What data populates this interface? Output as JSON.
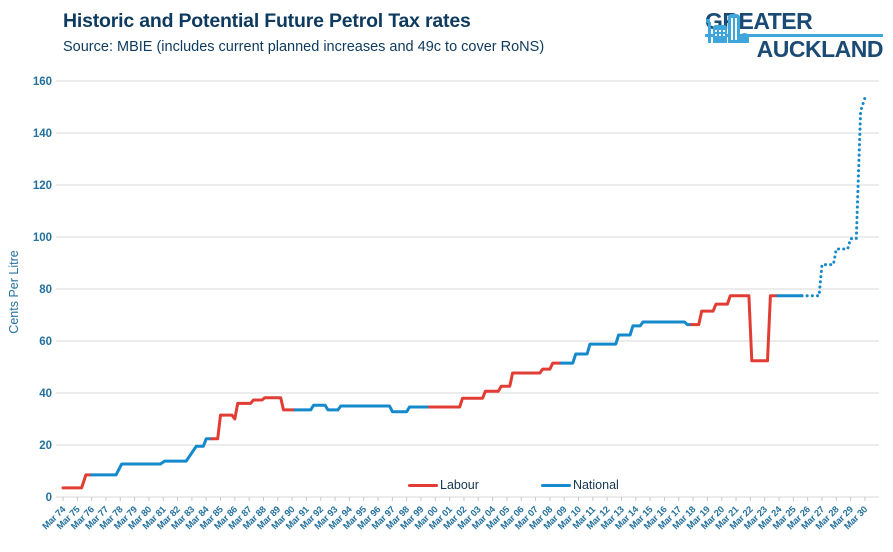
{
  "header": {
    "title": "Historic and Potential Future Petrol Tax rates",
    "subtitle": "Source: MBIE (includes current planned increases and 49c to cover RoNS)"
  },
  "logo": {
    "line1": "GREATER",
    "line2": "AUCKLAND"
  },
  "chart_data": {
    "type": "line",
    "title": "Historic and Potential Future Petrol Tax rates",
    "ylabel": "Cents Per Litre",
    "xlabel": "",
    "ylim": [
      0,
      160
    ],
    "y_ticks": [
      0,
      20,
      40,
      60,
      80,
      100,
      120,
      140,
      160
    ],
    "grid": "horizontal",
    "legend_position": "bottom-center",
    "x_tick_labels": [
      "Mar 74",
      "Mar 75",
      "Mar 76",
      "Mar 77",
      "Mar 78",
      "Mar 79",
      "Mar 80",
      "Mar 81",
      "Mar 82",
      "Mar 83",
      "Mar 84",
      "Mar 85",
      "Mar 86",
      "Mar 87",
      "Mar 88",
      "Mar 89",
      "Mar 90",
      "Mar 91",
      "Mar 92",
      "Mar 93",
      "Mar 94",
      "Mar 95",
      "Mar 96",
      "Mar 97",
      "Mar 98",
      "Mar 99",
      "Mar 00",
      "Mar 01",
      "Mar 02",
      "Mar 03",
      "Mar 04",
      "Mar 05",
      "Mar 06",
      "Mar 07",
      "Mar 08",
      "Mar 09",
      "Mar 10",
      "Mar 11",
      "Mar 12",
      "Mar 13",
      "Mar 14",
      "Mar 15",
      "Mar 16",
      "Mar 17",
      "Mar 18",
      "Mar 19",
      "Mar 20",
      "Mar 21",
      "Mar 22",
      "Mar 23",
      "Mar 24",
      "Mar 25",
      "Mar 26",
      "Mar 27",
      "Mar 28",
      "Mar 29",
      "Mar 30"
    ],
    "x_tick_years": [
      74,
      130
    ],
    "units": "cents per litre, x = March of each year (74 = 1974, 130 = 2030)",
    "legend": [
      {
        "label": "Labour",
        "color": "#e13d34"
      },
      {
        "label": "National",
        "color": "#1489cb"
      }
    ],
    "segments": [
      {
        "party": "Labour",
        "style": "solid",
        "points": [
          [
            74,
            3.5
          ],
          [
            75.3,
            3.5
          ],
          [
            75.6,
            8.5
          ],
          [
            76,
            8.5
          ]
        ]
      },
      {
        "party": "National",
        "style": "solid",
        "points": [
          [
            76,
            8.5
          ],
          [
            77.7,
            8.5
          ],
          [
            78.1,
            12.7
          ],
          [
            80.8,
            12.7
          ],
          [
            81.1,
            13.8
          ],
          [
            82.6,
            13.8
          ],
          [
            83.3,
            19.5
          ],
          [
            83.8,
            19.5
          ],
          [
            84.0,
            22.4
          ],
          [
            84.4,
            22.4
          ]
        ]
      },
      {
        "party": "Labour",
        "style": "solid",
        "points": [
          [
            84.4,
            22.4
          ],
          [
            84.8,
            22.4
          ],
          [
            85.0,
            31.5
          ],
          [
            85.8,
            31.5
          ],
          [
            86.0,
            30.0
          ],
          [
            86.2,
            36.0
          ],
          [
            87.1,
            36.0
          ],
          [
            87.3,
            37.3
          ],
          [
            87.9,
            37.3
          ],
          [
            88.1,
            38.2
          ],
          [
            89.2,
            38.2
          ],
          [
            89.4,
            33.5
          ],
          [
            90.2,
            33.5
          ]
        ]
      },
      {
        "party": "National",
        "style": "solid",
        "points": [
          [
            90.2,
            33.5
          ],
          [
            91.3,
            33.5
          ],
          [
            91.5,
            35.3
          ],
          [
            92.3,
            35.3
          ],
          [
            92.5,
            33.5
          ],
          [
            93.2,
            33.5
          ],
          [
            93.4,
            35.0
          ],
          [
            96.8,
            35.0
          ],
          [
            97.0,
            32.8
          ],
          [
            98.0,
            32.8
          ],
          [
            98.2,
            34.6
          ],
          [
            99.6,
            34.6
          ]
        ]
      },
      {
        "party": "Labour",
        "style": "solid",
        "points": [
          [
            99.6,
            34.6
          ],
          [
            101.7,
            34.6
          ],
          [
            101.9,
            38.0
          ],
          [
            103.3,
            38.0
          ],
          [
            103.5,
            40.7
          ],
          [
            104.4,
            40.7
          ],
          [
            104.6,
            42.6
          ],
          [
            105.2,
            42.6
          ],
          [
            105.4,
            47.7
          ],
          [
            107.3,
            47.7
          ],
          [
            107.5,
            49.2
          ],
          [
            108.0,
            49.2
          ],
          [
            108.2,
            51.5
          ],
          [
            108.8,
            51.5
          ]
        ]
      },
      {
        "party": "National",
        "style": "solid",
        "points": [
          [
            108.8,
            51.5
          ],
          [
            109.6,
            51.5
          ],
          [
            109.8,
            55.0
          ],
          [
            110.6,
            55.0
          ],
          [
            110.8,
            58.8
          ],
          [
            112.6,
            58.8
          ],
          [
            112.8,
            62.3
          ],
          [
            113.6,
            62.3
          ],
          [
            113.8,
            65.8
          ],
          [
            114.3,
            65.8
          ],
          [
            114.5,
            67.3
          ],
          [
            117.4,
            67.3
          ],
          [
            117.6,
            66.3
          ],
          [
            117.9,
            66.3
          ]
        ]
      },
      {
        "party": "Labour",
        "style": "solid",
        "points": [
          [
            117.9,
            66.3
          ],
          [
            118.4,
            66.3
          ],
          [
            118.6,
            71.5
          ],
          [
            119.4,
            71.5
          ],
          [
            119.6,
            74.2
          ],
          [
            120.4,
            74.2
          ],
          [
            120.6,
            77.4
          ],
          [
            121.9,
            77.4
          ],
          [
            122.1,
            52.4
          ],
          [
            123.2,
            52.4
          ],
          [
            123.4,
            77.4
          ],
          [
            123.9,
            77.4
          ]
        ]
      },
      {
        "party": "National",
        "style": "solid",
        "points": [
          [
            123.9,
            77.4
          ],
          [
            125.6,
            77.4
          ]
        ]
      },
      {
        "party": "National",
        "style": "dotted",
        "points": [
          [
            125.6,
            77.4
          ],
          [
            126.8,
            77.4
          ],
          [
            127.0,
            89.4
          ],
          [
            127.8,
            89.4
          ],
          [
            128.0,
            95.4
          ],
          [
            128.8,
            95.4
          ],
          [
            129.0,
            99.4
          ],
          [
            129.4,
            99.4
          ],
          [
            129.7,
            148.4
          ],
          [
            130,
            153.5
          ]
        ]
      }
    ],
    "colors": {
      "labour": "#e13d34",
      "national": "#1489cb",
      "grid": "#d9d9d9",
      "tick": "#c9c9c9",
      "axis_text": "#24719e",
      "title_text": "#0d3a5e",
      "logo_navy": "#1b4b74",
      "logo_blue": "#3ea6db"
    }
  }
}
